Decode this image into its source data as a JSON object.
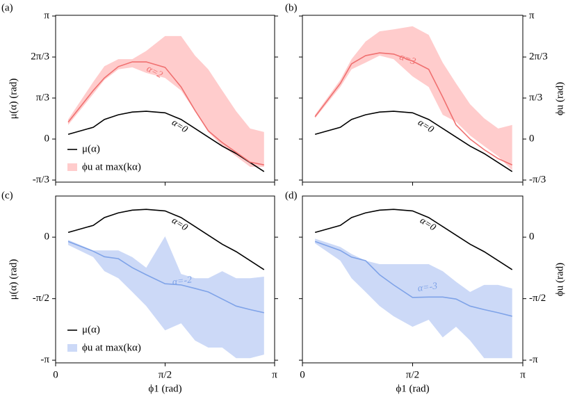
{
  "chart_data": [
    {
      "type": "line",
      "panel_label": "(a)",
      "ylabel": "μ(α) (rad)",
      "yaxis_side": "left",
      "legend": "lower left",
      "x": [
        0.18,
        0.54,
        0.7,
        0.9,
        1.1,
        1.3,
        1.57,
        1.8,
        2.0,
        2.19,
        2.39,
        2.59,
        2.79,
        2.99
      ],
      "xlim": [
        0,
        3.14159
      ],
      "xticks": [
        0,
        1.5708,
        3.14159
      ],
      "xtick_labels": false,
      "ylim": [
        -1.1,
        3.16
      ],
      "yticks": [
        {
          "value": -1.0472,
          "label": "-π/3"
        },
        0,
        {
          "value": 1.0472,
          "label": "π/3"
        },
        {
          "value": 2.0944,
          "label": "2π/3"
        },
        {
          "value": 3.14159,
          "label": "π"
        }
      ],
      "series": [
        {
          "name": "μ(α)",
          "color": "#000000",
          "annotation": "α=0",
          "values": [
            0.12,
            0.3,
            0.5,
            0.62,
            0.69,
            0.71,
            0.67,
            0.5,
            0.27,
            0.05,
            -0.18,
            -0.37,
            -0.6,
            -0.83
          ]
        },
        {
          "name": "ϕu at max(kα)",
          "color": "#f07070",
          "band_color": "#ffcccc",
          "annotation": "α=2",
          "values": [
            0.43,
            1.24,
            1.56,
            1.85,
            1.97,
            1.97,
            1.83,
            1.33,
            0.73,
            0.21,
            -0.09,
            -0.34,
            -0.59,
            -0.66
          ],
          "upper": [
            0.5,
            1.46,
            1.86,
            2.04,
            2.04,
            2.25,
            2.63,
            2.63,
            2.13,
            1.78,
            1.24,
            0.71,
            0.27,
            0.18
          ],
          "lower": [
            0.36,
            1.15,
            1.51,
            1.78,
            1.83,
            1.69,
            1.56,
            1.24,
            0.71,
            0.18,
            -0.18,
            -0.44,
            -0.71,
            -0.71
          ]
        }
      ]
    },
    {
      "type": "line",
      "panel_label": "(b)",
      "ylabel": "ϕu (rad)",
      "yaxis_side": "right",
      "x": [
        0.18,
        0.54,
        0.7,
        0.9,
        1.1,
        1.3,
        1.57,
        1.8,
        2.0,
        2.19,
        2.39,
        2.59,
        2.79,
        2.99
      ],
      "xlim": [
        0,
        3.14159
      ],
      "xticks": [
        0,
        1.5708,
        3.14159
      ],
      "xtick_labels": false,
      "ylim": [
        -1.1,
        3.16
      ],
      "yticks": [
        {
          "value": -1.0472,
          "label": "-π/3"
        },
        0,
        {
          "value": 1.0472,
          "label": "π/3"
        },
        {
          "value": 2.0944,
          "label": "2π/3"
        },
        {
          "value": 3.14159,
          "label": "π"
        }
      ],
      "series": [
        {
          "color": "#000000",
          "annotation": "α=0",
          "values": [
            0.12,
            0.3,
            0.5,
            0.62,
            0.69,
            0.71,
            0.67,
            0.5,
            0.27,
            0.05,
            -0.18,
            -0.37,
            -0.6,
            -0.83
          ]
        },
        {
          "color": "#f07070",
          "band_color": "#ffcccc",
          "annotation": "α=3",
          "values": [
            0.57,
            1.42,
            1.92,
            2.13,
            2.2,
            2.17,
            1.99,
            1.78,
            1.07,
            0.36,
            0.0,
            -0.27,
            -0.5,
            -0.66
          ],
          "upper": [
            0.62,
            1.51,
            2.04,
            2.49,
            2.75,
            2.8,
            2.88,
            2.66,
            1.95,
            1.42,
            0.89,
            0.53,
            0.27,
            0.36
          ],
          "lower": [
            0.53,
            1.33,
            1.78,
            1.95,
            2.13,
            2.04,
            1.6,
            1.33,
            0.62,
            0.44,
            0.09,
            -0.18,
            -0.44,
            -0.8
          ]
        }
      ]
    },
    {
      "type": "line",
      "panel_label": "(c)",
      "ylabel": "μ(α) (rad)",
      "xlabel": "ϕ1 (rad)",
      "yaxis_side": "left",
      "legend": "lower left",
      "x": [
        0.18,
        0.54,
        0.7,
        0.9,
        1.1,
        1.3,
        1.57,
        1.8,
        2.0,
        2.19,
        2.39,
        2.59,
        2.79,
        2.99
      ],
      "xlim": [
        0,
        3.14159
      ],
      "xticks": [
        0,
        {
          "value": 1.5708,
          "label": "π/2"
        },
        {
          "value": 3.14159,
          "label": "π"
        }
      ],
      "xtick_labels": true,
      "ylim": [
        -3.21,
        1.05
      ],
      "yticks": [
        {
          "value": -3.14159,
          "label": "-π"
        },
        {
          "value": -1.5708,
          "label": "-π/2"
        },
        0
      ],
      "series": [
        {
          "name": "μ(α)",
          "color": "#000000",
          "annotation": "α=0",
          "values": [
            0.12,
            0.3,
            0.5,
            0.62,
            0.69,
            0.71,
            0.67,
            0.5,
            0.27,
            0.05,
            -0.18,
            -0.37,
            -0.6,
            -0.83
          ]
        },
        {
          "name": "ϕu at max(kα)",
          "color": "#7fa3e8",
          "band_color": "#ccd9f7",
          "annotation": "α=-2",
          "values": [
            -0.11,
            -0.36,
            -0.5,
            -0.55,
            -0.78,
            -0.96,
            -1.19,
            -1.22,
            -1.31,
            -1.4,
            -1.58,
            -1.76,
            -1.85,
            -1.93
          ],
          "upper": [
            -0.07,
            -0.34,
            -0.34,
            -0.34,
            -0.51,
            -0.78,
            0.02,
            -0.94,
            -1.05,
            -1.05,
            -0.87,
            -1.05,
            -1.05,
            -1.01
          ],
          "lower": [
            -0.2,
            -0.51,
            -0.87,
            -1.05,
            -1.4,
            -1.76,
            -2.38,
            -2.2,
            -2.64,
            -2.82,
            -2.82,
            -3.09,
            -3.09,
            -3.0
          ]
        }
      ]
    },
    {
      "type": "line",
      "panel_label": "(d)",
      "ylabel": "ϕu (rad)",
      "xlabel": "ϕ1 (rad)",
      "yaxis_side": "right",
      "x": [
        0.18,
        0.54,
        0.7,
        0.9,
        1.1,
        1.3,
        1.57,
        1.8,
        2.0,
        2.19,
        2.39,
        2.59,
        2.79,
        2.99
      ],
      "xlim": [
        0,
        3.14159
      ],
      "xticks": [
        0,
        {
          "value": 1.5708,
          "label": "π/2"
        },
        {
          "value": 3.14159,
          "label": "π"
        }
      ],
      "xtick_labels": true,
      "ylim": [
        -3.21,
        1.05
      ],
      "yticks": [
        {
          "value": -3.14159,
          "label": "-π"
        },
        {
          "value": -1.5708,
          "label": "-π/2"
        },
        0
      ],
      "series": [
        {
          "color": "#000000",
          "annotation": "α=0",
          "values": [
            0.12,
            0.3,
            0.5,
            0.62,
            0.69,
            0.71,
            0.67,
            0.5,
            0.27,
            0.05,
            -0.18,
            -0.37,
            -0.6,
            -0.83
          ]
        },
        {
          "color": "#7fa3e8",
          "band_color": "#ccd9f7",
          "annotation": "α=-3",
          "values": [
            -0.11,
            -0.34,
            -0.51,
            -0.6,
            -0.96,
            -1.22,
            -1.54,
            -1.53,
            -1.53,
            -1.58,
            -1.76,
            -1.85,
            -1.93,
            -2.02
          ],
          "upper": [
            -0.04,
            -0.25,
            -0.43,
            -0.6,
            -0.69,
            -0.69,
            -0.69,
            -0.69,
            -0.87,
            -1.14,
            -1.4,
            -1.22,
            -1.22,
            -1.31
          ],
          "lower": [
            -0.16,
            -0.6,
            -1.05,
            -1.4,
            -1.76,
            -2.02,
            -2.29,
            -2.11,
            -2.56,
            -2.29,
            -2.64,
            -3.09,
            -3.09,
            -3.09
          ]
        }
      ]
    }
  ]
}
